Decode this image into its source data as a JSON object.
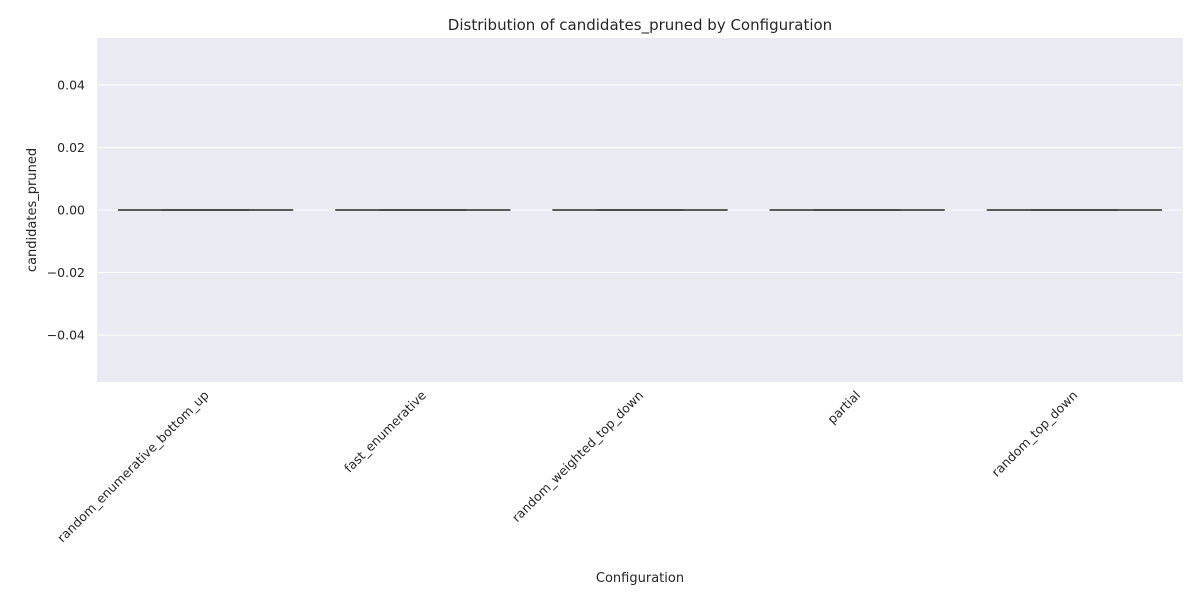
{
  "chart_data": {
    "type": "box",
    "title": "Distribution of candidates_pruned by Configuration",
    "xlabel": "Configuration",
    "ylabel": "candidates_pruned",
    "categories": [
      "random_enumerative_bottom_up",
      "fast_enumerative",
      "random_weighted_top_down",
      "partial",
      "random_top_down"
    ],
    "series": [
      {
        "boxes": [
          {
            "min": 0,
            "q1": 0,
            "median": 0,
            "q3": 0,
            "max": 0
          },
          {
            "min": 0,
            "q1": 0,
            "median": 0,
            "q3": 0,
            "max": 0
          },
          {
            "min": 0,
            "q1": 0,
            "median": 0,
            "q3": 0,
            "max": 0
          },
          {
            "min": 0,
            "q1": 0,
            "median": 0,
            "q3": 0,
            "max": 0
          },
          {
            "min": 0,
            "q1": 0,
            "median": 0,
            "q3": 0,
            "max": 0
          }
        ]
      }
    ],
    "yticks": [
      -0.04,
      -0.02,
      0.0,
      0.02,
      0.04
    ],
    "ytick_labels": [
      "−0.04",
      "−0.02",
      "0.00",
      "0.02",
      "0.04"
    ],
    "ylim": [
      -0.055,
      0.055
    ],
    "grid": true,
    "legend": "none"
  }
}
